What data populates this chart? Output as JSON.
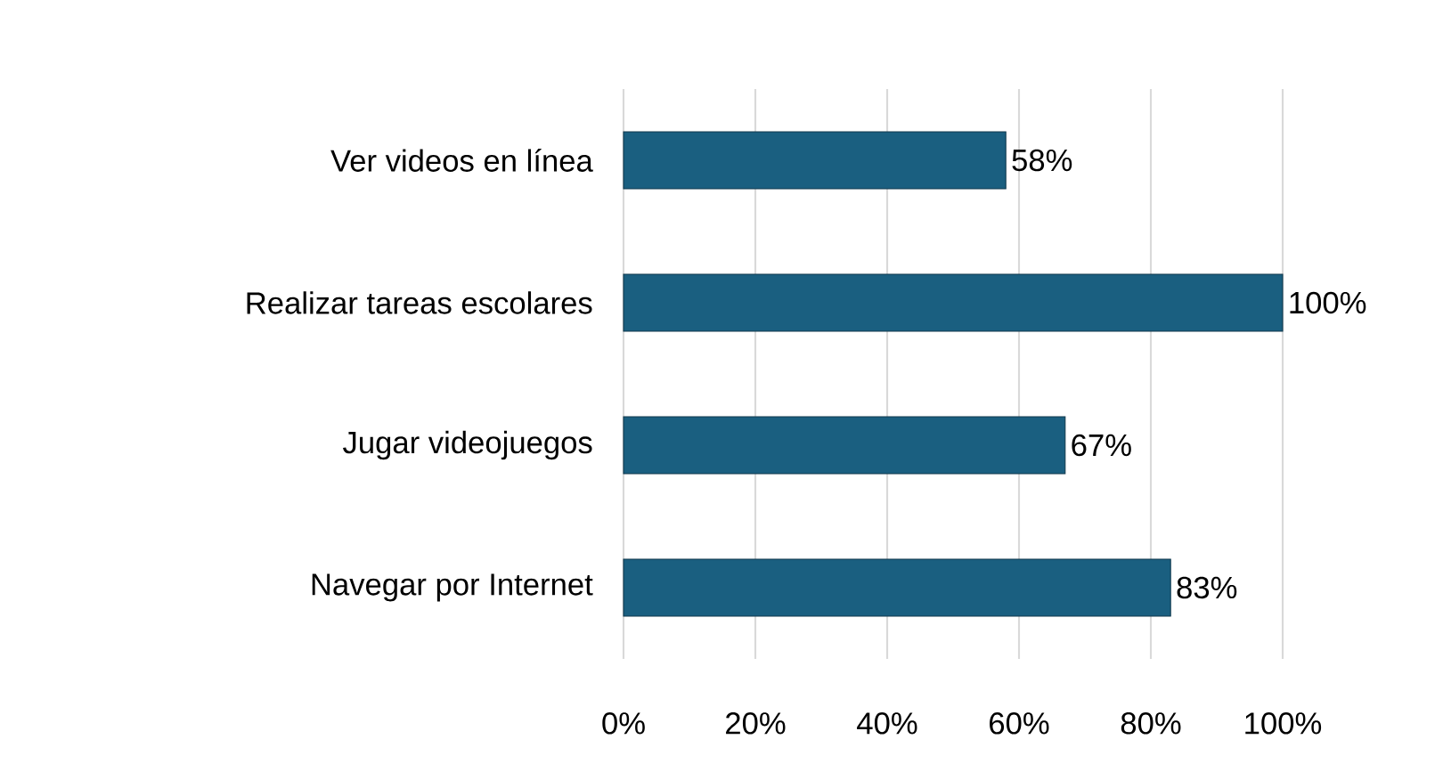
{
  "chart_data": {
    "type": "bar",
    "orientation": "horizontal",
    "categories": [
      "Ver videos en línea",
      "Realizar tareas escolares",
      "Jugar videojuegos",
      "Navegar por Internet"
    ],
    "values": [
      58,
      100,
      67,
      83
    ],
    "value_labels": [
      "58%",
      "100%",
      "67%",
      "83%"
    ],
    "color": "#1a5f80",
    "xlim": [
      0,
      100
    ],
    "xticks": [
      {
        "value": 0,
        "label": "0%"
      },
      {
        "value": 20,
        "label": "20%"
      },
      {
        "value": 40,
        "label": "40%"
      },
      {
        "value": 60,
        "label": "60%"
      },
      {
        "value": 80,
        "label": "80%"
      },
      {
        "value": 100,
        "label": "100%"
      }
    ],
    "grid": "x"
  }
}
